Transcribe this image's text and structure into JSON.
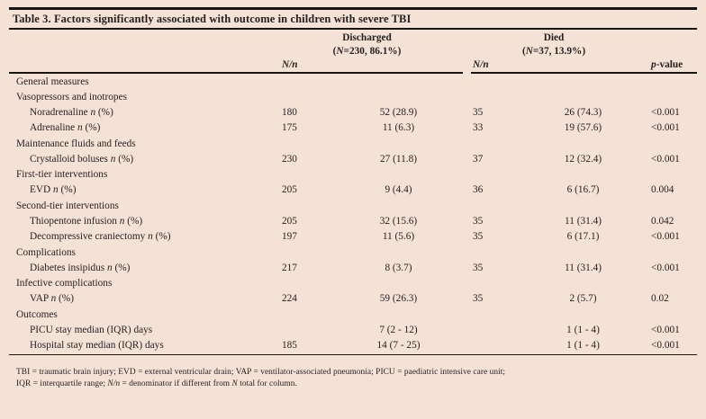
{
  "title": "Table 3. Factors significantly associated with outcome in children with severe TBI",
  "header": {
    "discharged_label": "Discharged",
    "discharged_n_parts": [
      {
        "t": "("
      },
      {
        "t": "N",
        "i": true
      },
      {
        "t": "=230, 86.1%)"
      }
    ],
    "died_label": "Died",
    "died_n_parts": [
      {
        "t": "("
      },
      {
        "t": "N",
        "i": true
      },
      {
        "t": "=37, 13.9%)"
      }
    ],
    "nn_parts": [
      {
        "t": "N/n",
        "i": true
      }
    ],
    "pvalue_parts": [
      {
        "t": "p",
        "i": true
      },
      {
        "t": "-value"
      }
    ]
  },
  "table": {
    "rows": [
      {
        "type": "section",
        "label_parts": [
          {
            "t": "General measures"
          }
        ]
      },
      {
        "type": "section",
        "label_parts": [
          {
            "t": "Vasopressors and inotropes"
          }
        ]
      },
      {
        "type": "item",
        "label_parts": [
          {
            "t": "Noradrenaline "
          },
          {
            "t": "n",
            "i": true
          },
          {
            "t": " (%)"
          }
        ],
        "nn_discharged": "180",
        "discharged": "52 (28.9)",
        "nn_died": "35",
        "died": "26 (74.3)",
        "p": "<0.001"
      },
      {
        "type": "item",
        "label_parts": [
          {
            "t": "Adrenaline "
          },
          {
            "t": "n",
            "i": true
          },
          {
            "t": " (%)"
          }
        ],
        "nn_discharged": "175",
        "discharged": "11 (6.3)",
        "nn_died": "33",
        "died": "19 (57.6)",
        "p": "<0.001"
      },
      {
        "type": "section",
        "label_parts": [
          {
            "t": "Maintenance fluids and feeds"
          }
        ]
      },
      {
        "type": "item",
        "label_parts": [
          {
            "t": "Crystalloid boluses "
          },
          {
            "t": "n",
            "i": true
          },
          {
            "t": " (%)"
          }
        ],
        "nn_discharged": "230",
        "discharged": "27 (11.8)",
        "nn_died": "37",
        "died": "12 (32.4)",
        "p": "<0.001"
      },
      {
        "type": "section",
        "label_parts": [
          {
            "t": "First-tier interventions"
          }
        ]
      },
      {
        "type": "item",
        "label_parts": [
          {
            "t": "EVD "
          },
          {
            "t": "n",
            "i": true
          },
          {
            "t": " (%)"
          }
        ],
        "nn_discharged": "205",
        "discharged": "9 (4.4)",
        "nn_died": "36",
        "died": "6 (16.7)",
        "p": "0.004"
      },
      {
        "type": "section",
        "label_parts": [
          {
            "t": "Second-tier interventions"
          }
        ]
      },
      {
        "type": "item",
        "label_parts": [
          {
            "t": "Thiopentone infusion "
          },
          {
            "t": "n",
            "i": true
          },
          {
            "t": " (%)"
          }
        ],
        "nn_discharged": "205",
        "discharged": "32 (15.6)",
        "nn_died": "35",
        "died": "11 (31.4)",
        "p": "0.042"
      },
      {
        "type": "item",
        "label_parts": [
          {
            "t": "Decompressive craniectomy "
          },
          {
            "t": "n",
            "i": true
          },
          {
            "t": " (%)"
          }
        ],
        "nn_discharged": "197",
        "discharged": "11 (5.6)",
        "nn_died": "35",
        "died": "6 (17.1)",
        "p": "<0.001"
      },
      {
        "type": "section",
        "label_parts": [
          {
            "t": "Complications"
          }
        ]
      },
      {
        "type": "item",
        "label_parts": [
          {
            "t": "Diabetes insipidus "
          },
          {
            "t": "n",
            "i": true
          },
          {
            "t": " (%)"
          }
        ],
        "nn_discharged": "217",
        "discharged": "8 (3.7)",
        "nn_died": "35",
        "died": "11 (31.4)",
        "p": "<0.001"
      },
      {
        "type": "section",
        "label_parts": [
          {
            "t": "Infective complications"
          }
        ]
      },
      {
        "type": "item",
        "label_parts": [
          {
            "t": "VAP "
          },
          {
            "t": "n",
            "i": true
          },
          {
            "t": " (%)"
          }
        ],
        "nn_discharged": "224",
        "discharged": "59 (26.3)",
        "nn_died": "35",
        "died": "2 (5.7)",
        "p": "0.02"
      },
      {
        "type": "section",
        "label_parts": [
          {
            "t": "Outcomes"
          }
        ]
      },
      {
        "type": "item",
        "label_parts": [
          {
            "t": "PICU stay median (IQR) days"
          }
        ],
        "nn_discharged": "",
        "discharged": "7 (2 - 12)",
        "nn_died": "",
        "died": "1 (1 - 4)",
        "p": "<0.001"
      },
      {
        "type": "item",
        "label_parts": [
          {
            "t": "Hospital stay median (IQR) days"
          }
        ],
        "nn_discharged": "185",
        "discharged": "14 (7 - 25)",
        "nn_died": "",
        "died": "1 (1 - 4)",
        "p": "<0.001"
      }
    ]
  },
  "footnotes": {
    "line1_parts": [
      {
        "t": "TBI = traumatic brain injury; EVD = external ventricular drain; VAP = ventilator-associated pneumonia; PICU = paediatric intensive care unit;"
      }
    ],
    "line2_parts": [
      {
        "t": "IQR = interquartile range; "
      },
      {
        "t": "N/n",
        "i": true
      },
      {
        "t": " = denominator if different from "
      },
      {
        "t": "N",
        "i": true
      },
      {
        "t": " total for column."
      }
    ]
  },
  "colors": {
    "background": "#f5e2d7",
    "text": "#262120",
    "rule": "#171412"
  }
}
